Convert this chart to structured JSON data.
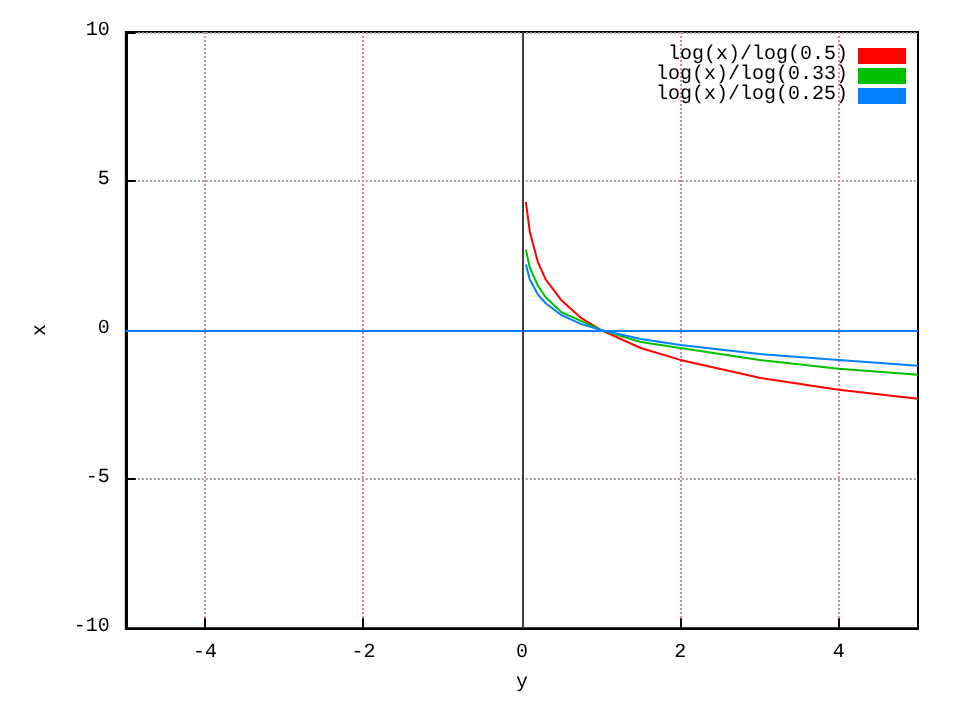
{
  "chart_data": {
    "type": "line",
    "xlabel": "y",
    "ylabel": "x",
    "xlim": [
      -5,
      5
    ],
    "xticks": [
      -4,
      -2,
      0,
      2,
      4
    ],
    "ylim": [
      -10,
      10
    ],
    "yticks": [
      -10,
      -5,
      0,
      5,
      10
    ],
    "grid": true,
    "legend": "top right",
    "marker": "none",
    "line_style": "solid",
    "x": [
      0.05,
      0.1,
      0.2,
      0.3,
      0.5,
      0.75,
      1,
      1.5,
      2,
      3,
      4,
      5
    ],
    "series": [
      {
        "name": "log(x)/log(0.5)",
        "color": "#ff0000",
        "values": [
          4.3,
          3.3,
          2.3,
          1.7,
          1.0,
          0.4,
          0,
          -0.6,
          -1.0,
          -1.6,
          -2.0,
          -2.3
        ]
      },
      {
        "name": "log(x)/log(0.33)",
        "color": "#00c000",
        "values": [
          2.7,
          2.1,
          1.5,
          1.1,
          0.6,
          0.3,
          0,
          -0.4,
          -0.6,
          -1.0,
          -1.3,
          -1.5
        ]
      },
      {
        "name": "log(x)/log(0.25)",
        "color": "#0080ff",
        "values": [
          2.2,
          1.7,
          1.2,
          0.9,
          0.5,
          0.2,
          0,
          -0.3,
          -0.5,
          -0.8,
          -1.0,
          -1.2
        ]
      }
    ],
    "ref_lines": [
      {
        "axis": "y",
        "value": 0,
        "color": "#0080ff"
      },
      {
        "axis": "x",
        "value": 0,
        "color": "#404040"
      }
    ]
  }
}
